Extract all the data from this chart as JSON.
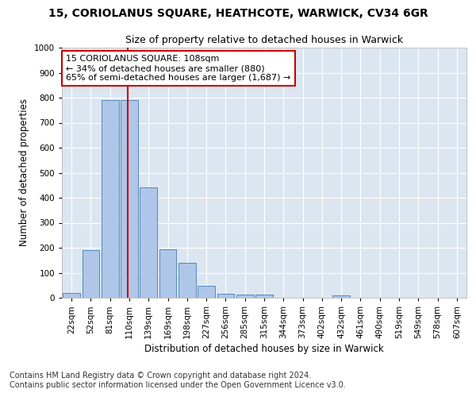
{
  "title": "15, CORIOLANUS SQUARE, HEATHCOTE, WARWICK, CV34 6GR",
  "subtitle": "Size of property relative to detached houses in Warwick",
  "xlabel": "Distribution of detached houses by size in Warwick",
  "ylabel": "Number of detached properties",
  "bin_labels": [
    "22sqm",
    "52sqm",
    "81sqm",
    "110sqm",
    "139sqm",
    "169sqm",
    "198sqm",
    "227sqm",
    "256sqm",
    "285sqm",
    "315sqm",
    "344sqm",
    "373sqm",
    "402sqm",
    "432sqm",
    "461sqm",
    "490sqm",
    "519sqm",
    "549sqm",
    "578sqm",
    "607sqm"
  ],
  "bar_values": [
    18,
    192,
    790,
    790,
    440,
    195,
    140,
    48,
    15,
    12,
    12,
    0,
    0,
    0,
    10,
    0,
    0,
    0,
    0,
    0,
    0
  ],
  "bar_color": "#aec6e8",
  "bar_edge_color": "#5588bb",
  "vline_x_index": 2.92,
  "vline_color": "#cc0000",
  "annotation_text": "15 CORIOLANUS SQUARE: 108sqm\n← 34% of detached houses are smaller (880)\n65% of semi-detached houses are larger (1,687) →",
  "annotation_box_facecolor": "#ffffff",
  "annotation_box_edgecolor": "#cc0000",
  "ylim": [
    0,
    1000
  ],
  "yticks": [
    0,
    100,
    200,
    300,
    400,
    500,
    600,
    700,
    800,
    900,
    1000
  ],
  "footer_line1": "Contains HM Land Registry data © Crown copyright and database right 2024.",
  "footer_line2": "Contains public sector information licensed under the Open Government Licence v3.0.",
  "fig_bg_color": "#ffffff",
  "plot_bg_color": "#dce6f0",
  "grid_color": "#ffffff",
  "title_fontsize": 10,
  "subtitle_fontsize": 9,
  "axis_label_fontsize": 8.5,
  "tick_fontsize": 7.5,
  "annotation_fontsize": 8,
  "footer_fontsize": 7
}
